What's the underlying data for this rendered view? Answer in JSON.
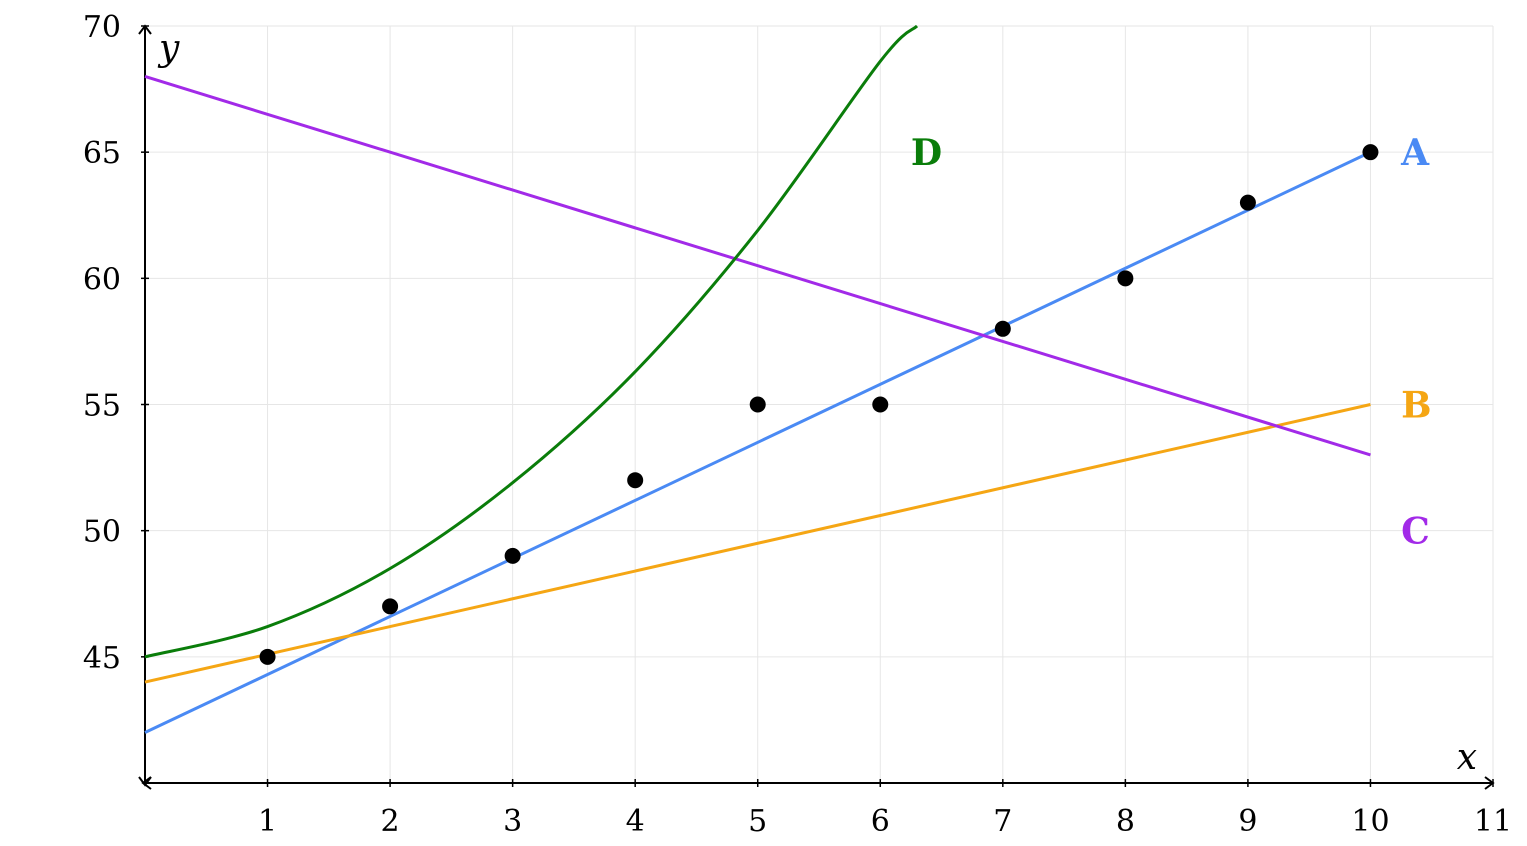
{
  "chart_data": {
    "type": "scatter",
    "title": "",
    "xlabel": "x",
    "ylabel": "y",
    "xlim": [
      0,
      11
    ],
    "ylim": [
      40,
      70
    ],
    "grid": true,
    "x_ticks": [
      "1",
      "2",
      "3",
      "4",
      "5",
      "6",
      "7",
      "8",
      "9",
      "10",
      "11"
    ],
    "y_ticks": [
      "45",
      "50",
      "55",
      "60",
      "65",
      "70"
    ],
    "points": {
      "x": [
        1,
        2,
        3,
        4,
        5,
        6,
        7,
        8,
        9,
        10
      ],
      "y": [
        45,
        47,
        49,
        52,
        55,
        55,
        58,
        60,
        63,
        65
      ],
      "color": "#000000"
    },
    "series": [
      {
        "name": "A",
        "kind": "line",
        "color": "#4a8af4",
        "x": [
          0,
          10
        ],
        "y": [
          42,
          65
        ]
      },
      {
        "name": "B",
        "kind": "line",
        "color": "#f5a614",
        "x": [
          0,
          10
        ],
        "y": [
          44,
          55
        ]
      },
      {
        "name": "C",
        "kind": "line",
        "color": "#a22ae8",
        "x": [
          0,
          10
        ],
        "y": [
          68,
          53
        ]
      },
      {
        "name": "D",
        "kind": "curve",
        "color": "#0a7d0a",
        "x": [
          0,
          1,
          2,
          3,
          4,
          5,
          6,
          6.3
        ],
        "y": [
          45,
          46.2,
          48.5,
          51.9,
          56.3,
          61.9,
          68.6,
          70
        ]
      }
    ],
    "annotations": [
      {
        "text": "A",
        "x": 10.25,
        "y": 65,
        "color": "#4a8af4"
      },
      {
        "text": "B",
        "x": 10.25,
        "y": 55,
        "color": "#f5a614"
      },
      {
        "text": "C",
        "x": 10.25,
        "y": 50,
        "color": "#a22ae8"
      },
      {
        "text": "D",
        "x": 6.25,
        "y": 65,
        "color": "#0a7d0a"
      }
    ]
  }
}
